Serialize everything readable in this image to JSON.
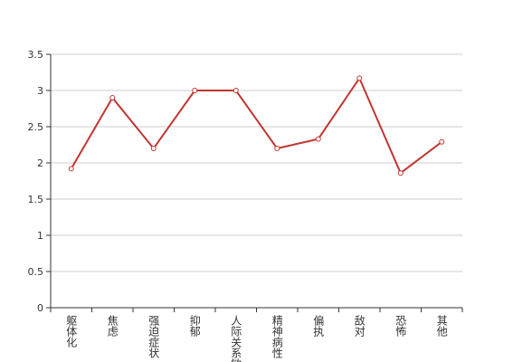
{
  "chart_data": {
    "type": "line",
    "categories": [
      "躯体化",
      "焦虑",
      "强迫症状",
      "抑郁",
      "人际关系敏感",
      "精神病性",
      "偏执",
      "敌对",
      "恐怖",
      "其他"
    ],
    "values": [
      1.92,
      2.9,
      2.2,
      3.0,
      3.0,
      2.2,
      2.33,
      3.17,
      1.86,
      2.29
    ],
    "color": "#c23531",
    "ylim": [
      0,
      3.5
    ],
    "yticks": [
      0,
      0.5,
      1,
      1.5,
      2,
      2.5,
      3,
      3.5
    ],
    "grid": true
  }
}
